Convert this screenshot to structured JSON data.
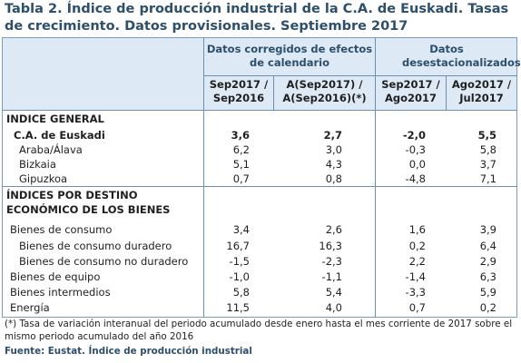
{
  "title": "Tabla 2. Índice de producción industrial de la C.A. de Euskadi. Tasas de crecimiento. Datos provisionales. Septiembre 2017",
  "group_headers": {
    "left": "Datos corregidos de efectos de calendario",
    "right": "Datos desestacionalizados"
  },
  "col_headers": {
    "c1_line1": "Sep2017 /",
    "c1_line2": "Sep2016",
    "c2_line1": "A(Sep2017) /",
    "c2_line2": "A(Sep2016)(*)",
    "c3_line1": "Sep2017 /",
    "c3_line2": "Ago2017",
    "c4_line1": "Ago2017 /",
    "c4_line2": "Jul2017"
  },
  "sections": {
    "general": "INDICE GENERAL",
    "destino_line1": "ÍNDICES POR DESTINO",
    "destino_line2": "ECONÓMICO DE LOS BIENES"
  },
  "rows": [
    {
      "label": "C.A. de Euskadi",
      "v1": "3,6",
      "v2": "2,7",
      "v3": "-2,0",
      "v4": "5,5"
    },
    {
      "label": "Araba/Álava",
      "v1": "6,2",
      "v2": "3,0",
      "v3": "-0,3",
      "v4": "5,8"
    },
    {
      "label": "Bizkaia",
      "v1": "5,1",
      "v2": "4,3",
      "v3": "0,0",
      "v4": "3,7"
    },
    {
      "label": "Gipuzkoa",
      "v1": "0,7",
      "v2": "0,8",
      "v3": "-4,8",
      "v4": "7,1"
    },
    {
      "label": "Bienes de consumo",
      "v1": "3,4",
      "v2": "2,6",
      "v3": "1,6",
      "v4": "3,9"
    },
    {
      "label": "Bienes de consumo duradero",
      "v1": "16,7",
      "v2": "16,3",
      "v3": "0,2",
      "v4": "6,4"
    },
    {
      "label": "Bienes de consumo no duradero",
      "v1": "-1,5",
      "v2": "-2,3",
      "v3": "2,2",
      "v4": "2,9"
    },
    {
      "label": "Bienes de equipo",
      "v1": "-1,0",
      "v2": "-1,1",
      "v3": "-1,4",
      "v4": "6,3"
    },
    {
      "label": "Bienes intermedios",
      "v1": "5,8",
      "v2": "5,4",
      "v3": "-3,3",
      "v4": "5,9"
    },
    {
      "label": "Energía",
      "v1": "11,5",
      "v2": "4,0",
      "v3": "0,7",
      "v4": "0,2"
    }
  ],
  "footnote": "(*) Tasa de variación interanual del periodo acumulado desde enero hasta el mes corriente de 2017 sobre el mismo periodo acumulado del año 2016",
  "source": "Fuente: Eustat. Índice de producción industrial"
}
